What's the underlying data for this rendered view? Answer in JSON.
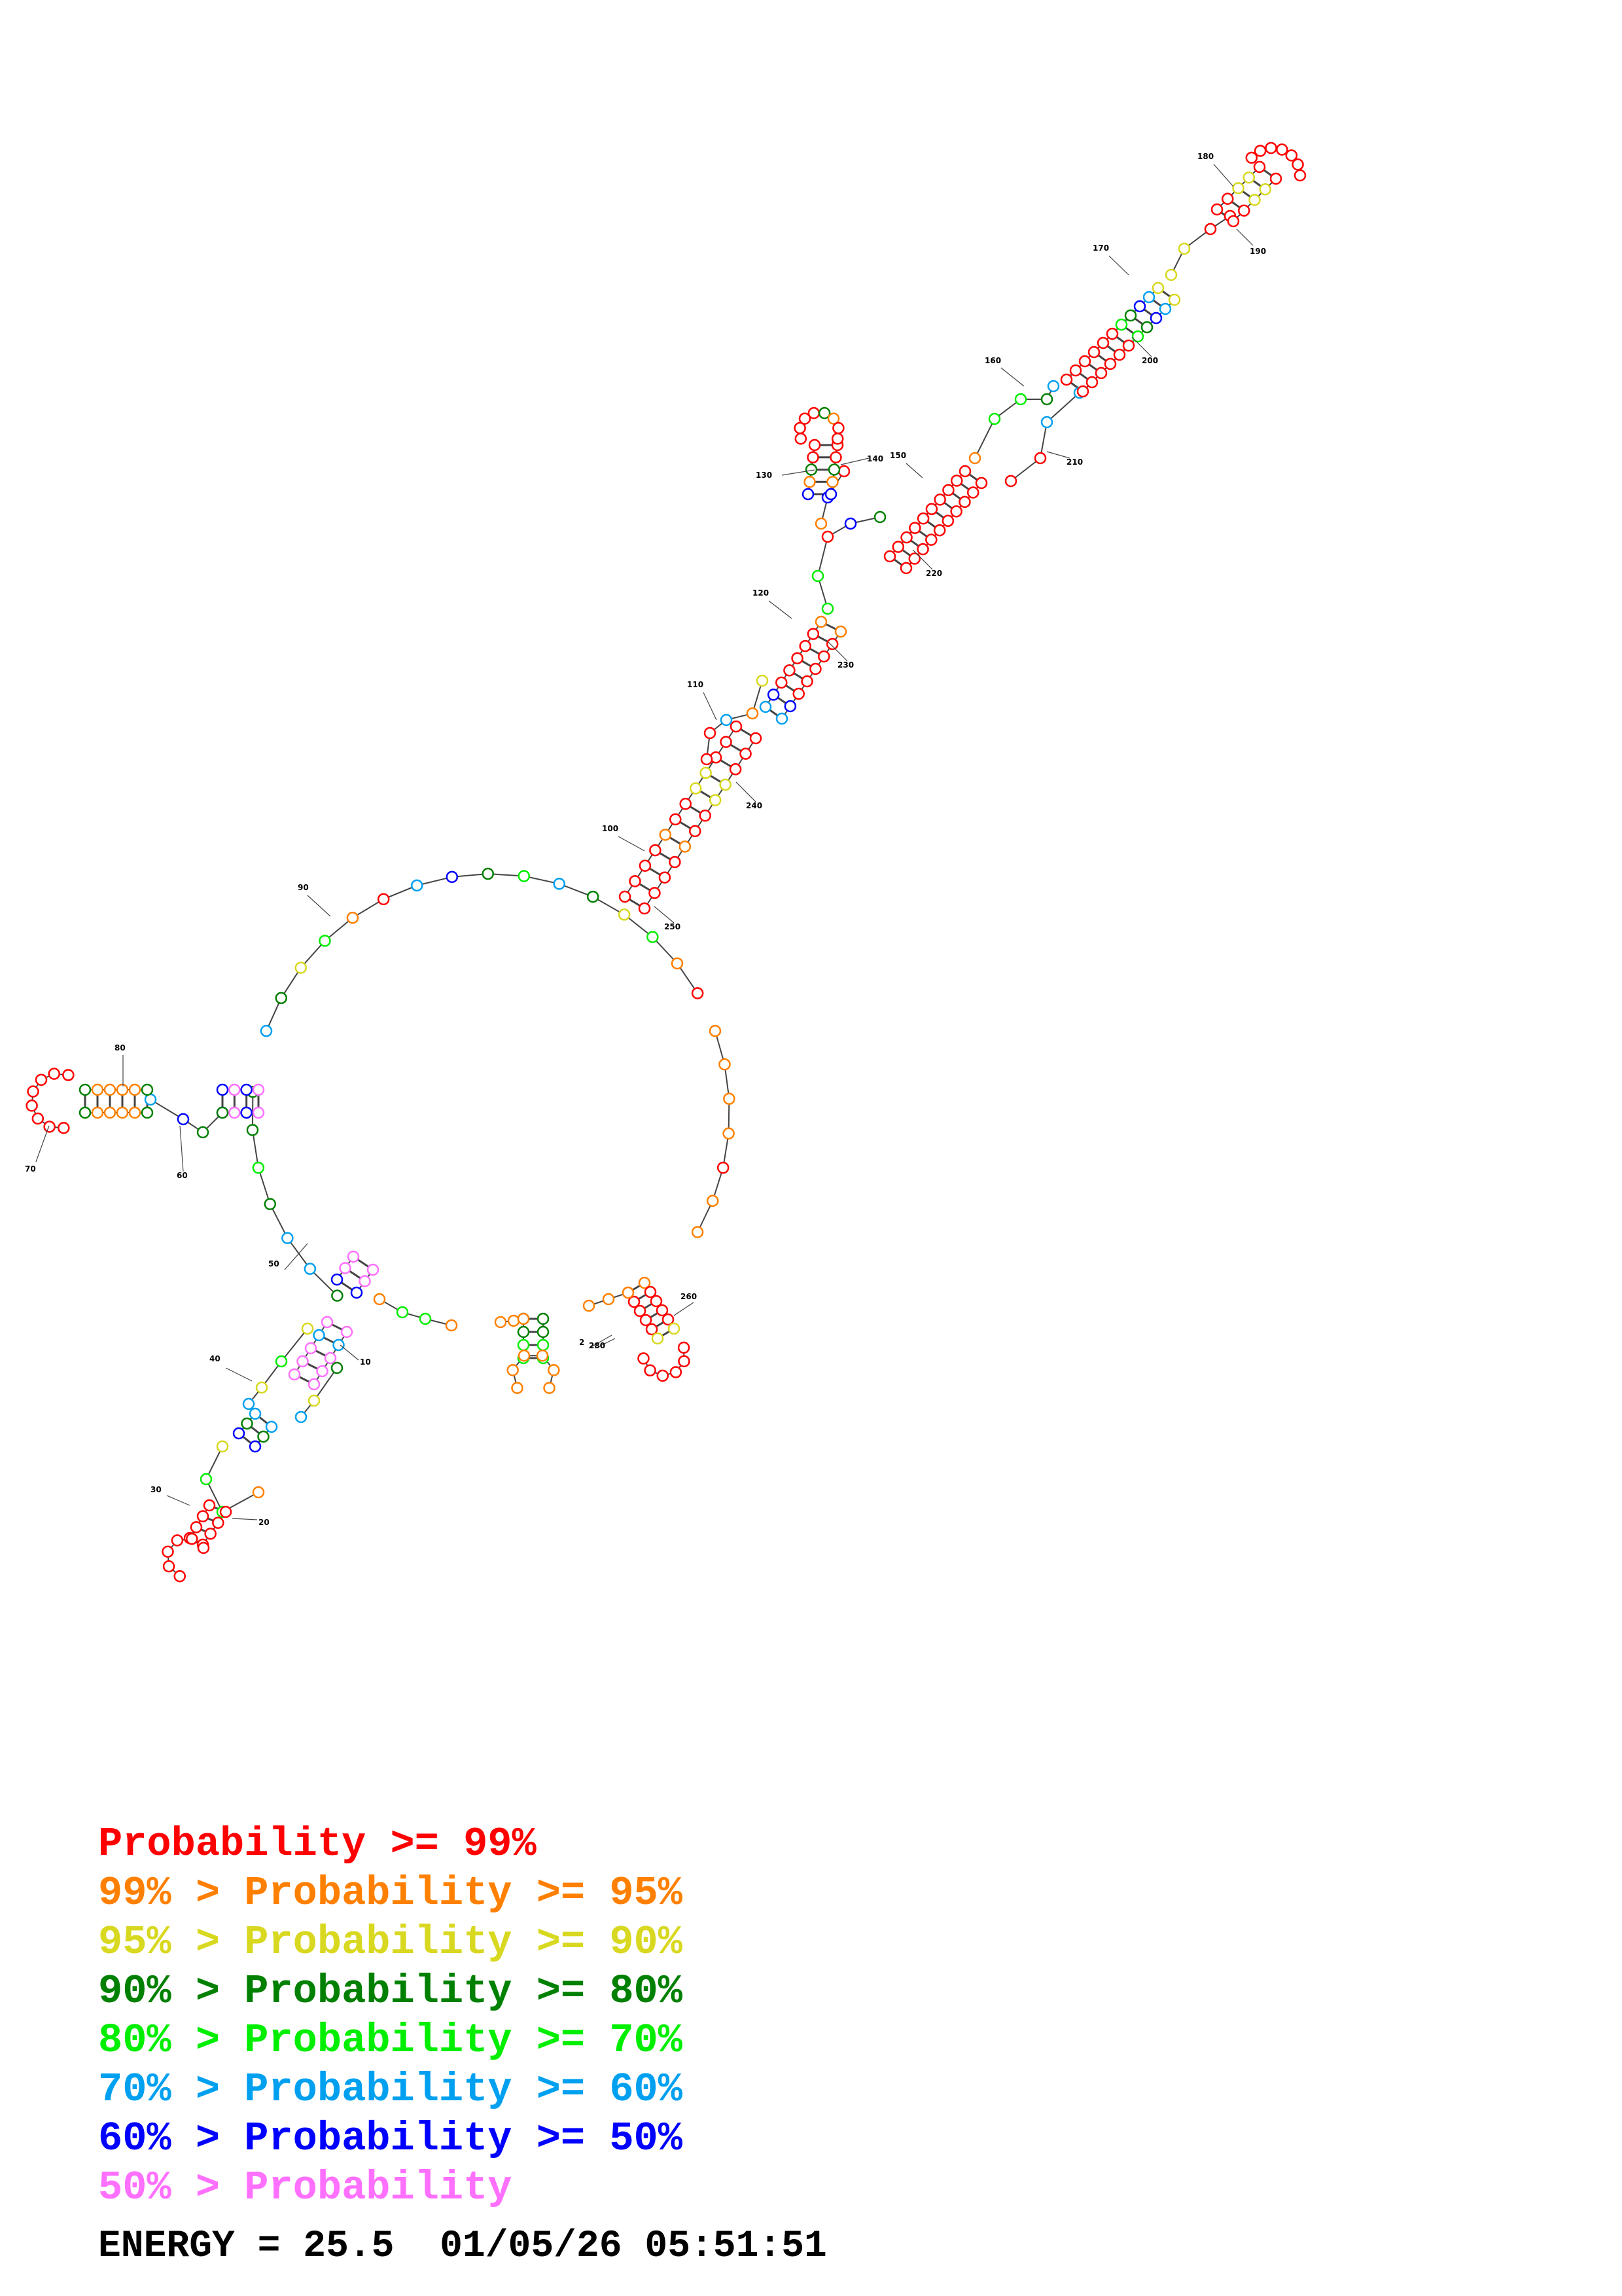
{
  "colors": {
    "p99": "#ff0000",
    "p95": "#ff8000",
    "p90": "#d8d820",
    "p80": "#008000",
    "p70": "#00ee00",
    "p60": "#00a0f0",
    "p50": "#0000ff",
    "plow": "#ff70ff",
    "line": "#444444"
  },
  "position_labels": [
    "10",
    "20",
    "30",
    "40",
    "50",
    "60",
    "70",
    "80",
    "90",
    "100",
    "110",
    "120",
    "130",
    "140",
    "150",
    "160",
    "170",
    "180",
    "190",
    "200",
    "210",
    "220",
    "230",
    "240",
    "250",
    "260",
    "2",
    "280"
  ],
  "legend": [
    {
      "left": "",
      "right": "Probability >= 99%",
      "color_key": "p99"
    },
    {
      "left": "99% > ",
      "right": "Probability >= 95%",
      "color_key": "p95"
    },
    {
      "left": "95% > ",
      "right": "Probability >= 90%",
      "color_key": "p90"
    },
    {
      "left": "90% > ",
      "right": "Probability >= 80%",
      "color_key": "p80"
    },
    {
      "left": "80% > ",
      "right": "Probability >= 70%",
      "color_key": "p70"
    },
    {
      "left": "70% > ",
      "right": "Probability >= 60%",
      "color_key": "p60"
    },
    {
      "left": "60% > ",
      "right": "Probability >= 50%",
      "color_key": "p50"
    },
    {
      "left": "50% > ",
      "right": "Probability",
      "color_key": "plow"
    }
  ],
  "energy": {
    "label": "ENERGY",
    "value": "25.5",
    "date": "01/05/26",
    "time": "05:51:51"
  }
}
